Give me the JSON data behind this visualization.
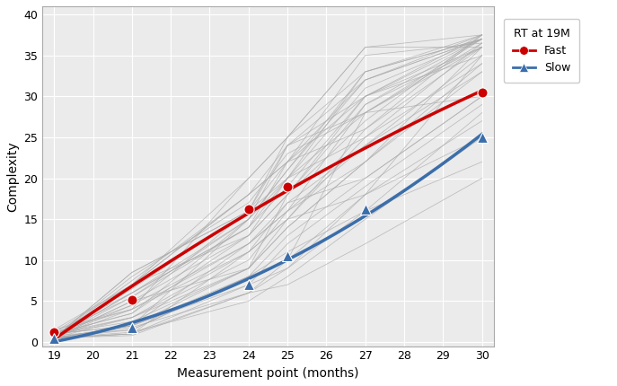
{
  "xlabel": "Measurement point (months)",
  "ylabel": "Complexity",
  "xlim": [
    18.7,
    30.3
  ],
  "ylim": [
    -0.5,
    41
  ],
  "xticks": [
    19,
    20,
    21,
    22,
    23,
    24,
    25,
    26,
    27,
    28,
    29,
    30
  ],
  "yticks": [
    0,
    5,
    10,
    15,
    20,
    25,
    30,
    35,
    40
  ],
  "fast_x": [
    19,
    21,
    24,
    25,
    30
  ],
  "fast_y": [
    1.2,
    5.2,
    16.2,
    19.0,
    30.5
  ],
  "slow_x": [
    19,
    21,
    24,
    25,
    27,
    30
  ],
  "slow_y": [
    0.5,
    1.8,
    7.0,
    10.5,
    16.2,
    25.0
  ],
  "fast_color": "#CC0000",
  "slow_color": "#3B6EAA",
  "bg_color": "#FFFFFF",
  "panel_bg": "#EBEBEB",
  "grid_color": "#FFFFFF",
  "spaghetti_color": "#AAAAAA",
  "legend_title": "RT at 19M",
  "legend_fast": "Fast",
  "legend_slow": "Slow",
  "spaghetti_lines": [
    {
      "x": [
        19,
        21,
        24,
        25,
        27,
        30
      ],
      "y": [
        0.5,
        7.0,
        18.0,
        22.0,
        32.0,
        37.0
      ]
    },
    {
      "x": [
        19,
        21,
        24,
        25,
        27,
        30
      ],
      "y": [
        0.5,
        6.0,
        14.0,
        20.0,
        28.0,
        36.5
      ]
    },
    {
      "x": [
        19,
        21,
        24,
        25,
        27,
        30
      ],
      "y": [
        0.5,
        8.5,
        16.0,
        22.0,
        30.0,
        36.0
      ]
    },
    {
      "x": [
        19,
        21,
        24,
        25,
        27,
        30
      ],
      "y": [
        1.0,
        2.0,
        9.0,
        14.0,
        22.0,
        34.0
      ]
    },
    {
      "x": [
        19,
        21,
        24,
        25,
        27,
        30
      ],
      "y": [
        0.8,
        3.0,
        11.0,
        15.0,
        26.0,
        37.5
      ]
    },
    {
      "x": [
        19,
        21,
        24,
        25,
        27,
        30
      ],
      "y": [
        0.5,
        1.0,
        6.0,
        10.0,
        18.0,
        25.0
      ]
    },
    {
      "x": [
        19,
        21,
        24,
        25,
        27,
        30
      ],
      "y": [
        1.5,
        4.0,
        12.0,
        16.0,
        24.0,
        33.0
      ]
    },
    {
      "x": [
        19,
        21,
        24,
        25,
        27,
        30
      ],
      "y": [
        0.5,
        5.0,
        13.0,
        18.0,
        29.0,
        36.0
      ]
    },
    {
      "x": [
        19,
        21,
        24,
        25,
        27,
        30
      ],
      "y": [
        0.5,
        2.0,
        8.0,
        13.0,
        20.0,
        30.0
      ]
    },
    {
      "x": [
        19,
        21,
        24,
        25,
        27,
        30
      ],
      "y": [
        0.5,
        7.0,
        20.0,
        25.0,
        36.0,
        37.5
      ]
    },
    {
      "x": [
        19,
        21,
        24,
        25,
        27,
        30
      ],
      "y": [
        1.0,
        3.5,
        15.0,
        20.0,
        33.0,
        37.0
      ]
    },
    {
      "x": [
        19,
        21,
        24,
        25,
        27,
        30
      ],
      "y": [
        0.5,
        1.5,
        8.0,
        11.0,
        16.0,
        28.0
      ]
    },
    {
      "x": [
        19,
        21,
        24,
        25,
        27,
        30
      ],
      "y": [
        0.5,
        5.0,
        9.0,
        14.0,
        22.0,
        36.0
      ]
    },
    {
      "x": [
        19,
        21,
        24,
        25,
        27,
        30
      ],
      "y": [
        1.0,
        2.0,
        15.0,
        24.0,
        28.0,
        37.0
      ]
    },
    {
      "x": [
        19,
        21,
        24,
        25,
        27,
        30
      ],
      "y": [
        0.5,
        1.0,
        11.0,
        15.0,
        18.0,
        35.0
      ]
    },
    {
      "x": [
        19,
        21,
        24,
        25,
        27,
        30
      ],
      "y": [
        1.5,
        7.0,
        13.0,
        20.0,
        25.0,
        36.5
      ]
    },
    {
      "x": [
        19,
        21,
        24,
        25,
        27,
        30
      ],
      "y": [
        0.5,
        8.5,
        16.0,
        25.0,
        33.0,
        37.5
      ]
    },
    {
      "x": [
        19,
        21,
        24,
        25,
        27,
        30
      ],
      "y": [
        0.5,
        0.8,
        6.0,
        7.0,
        12.0,
        20.0
      ]
    },
    {
      "x": [
        19,
        21,
        24,
        25,
        27,
        30
      ],
      "y": [
        1.0,
        3.0,
        9.0,
        18.0,
        30.0,
        37.0
      ]
    },
    {
      "x": [
        19,
        21,
        24,
        25,
        27,
        30
      ],
      "y": [
        0.5,
        6.0,
        14.0,
        22.0,
        35.0,
        36.5
      ]
    },
    {
      "x": [
        19,
        21,
        24,
        25,
        27,
        30
      ],
      "y": [
        1.2,
        4.0,
        20.0,
        25.0,
        36.0,
        36.0
      ]
    },
    {
      "x": [
        19,
        21,
        24,
        25,
        27,
        30
      ],
      "y": [
        0.5,
        2.0,
        12.0,
        16.0,
        29.0,
        37.0
      ]
    },
    {
      "x": [
        19,
        21,
        24,
        25,
        27,
        30
      ],
      "y": [
        0.8,
        1.5,
        8.0,
        10.0,
        28.0,
        30.0
      ]
    },
    {
      "x": [
        19,
        21,
        24,
        25,
        27,
        30
      ],
      "y": [
        1.0,
        4.5,
        16.0,
        24.0,
        32.0,
        37.5
      ]
    },
    {
      "x": [
        19,
        21,
        24,
        25,
        27,
        30
      ],
      "y": [
        0.5,
        7.5,
        18.0,
        22.0,
        26.0,
        36.0
      ]
    },
    {
      "x": [
        19,
        21,
        24,
        25,
        27,
        30
      ],
      "y": [
        0.5,
        1.0,
        7.0,
        9.0,
        18.0,
        27.0
      ]
    },
    {
      "x": [
        19,
        21,
        24,
        25,
        27,
        30
      ],
      "y": [
        1.0,
        5.5,
        14.0,
        19.0,
        30.0,
        35.0
      ]
    },
    {
      "x": [
        19,
        21,
        24,
        25,
        27,
        30
      ],
      "y": [
        0.5,
        3.0,
        10.0,
        16.0,
        22.0,
        33.0
      ]
    },
    {
      "x": [
        19,
        21,
        24,
        25,
        27,
        30
      ],
      "y": [
        1.2,
        6.0,
        15.0,
        21.0,
        32.0,
        37.0
      ]
    },
    {
      "x": [
        19,
        21,
        24,
        25,
        27,
        30
      ],
      "y": [
        0.5,
        1.2,
        5.0,
        8.0,
        15.0,
        25.0
      ]
    },
    {
      "x": [
        19,
        21,
        24,
        25,
        27,
        30
      ],
      "y": [
        0.5,
        8.0,
        17.0,
        23.0,
        28.0,
        36.0
      ]
    },
    {
      "x": [
        19,
        21,
        24,
        25,
        27,
        30
      ],
      "y": [
        1.0,
        2.5,
        9.0,
        15.0,
        25.0,
        34.0
      ]
    },
    {
      "x": [
        19,
        21,
        24,
        25,
        27,
        30
      ],
      "y": [
        0.5,
        4.0,
        11.0,
        17.0,
        20.0,
        30.0
      ]
    },
    {
      "x": [
        19,
        21,
        24,
        25,
        27,
        30
      ],
      "y": [
        0.8,
        6.5,
        16.0,
        20.0,
        31.0,
        37.0
      ]
    },
    {
      "x": [
        19,
        21,
        24,
        25,
        27,
        30
      ],
      "y": [
        0.5,
        1.8,
        6.0,
        9.0,
        16.0,
        22.0
      ]
    },
    {
      "x": [
        19,
        21,
        24,
        25,
        27,
        30
      ],
      "y": [
        1.0,
        3.5,
        13.0,
        18.0,
        27.0,
        37.5
      ]
    },
    {
      "x": [
        19,
        21,
        24,
        25,
        27,
        30
      ],
      "y": [
        0.5,
        5.5,
        15.0,
        21.0,
        33.0,
        37.0
      ]
    },
    {
      "x": [
        19,
        21,
        24,
        25,
        27,
        30
      ],
      "y": [
        1.2,
        7.0,
        18.0,
        24.0,
        30.0,
        37.5
      ]
    },
    {
      "x": [
        19,
        21,
        24,
        25,
        27,
        30
      ],
      "y": [
        0.5,
        2.0,
        7.0,
        12.0,
        19.0,
        29.0
      ]
    },
    {
      "x": [
        19,
        21,
        24,
        25,
        27,
        30
      ],
      "y": [
        0.5,
        4.5,
        12.0,
        17.0,
        24.0,
        35.0
      ]
    }
  ]
}
